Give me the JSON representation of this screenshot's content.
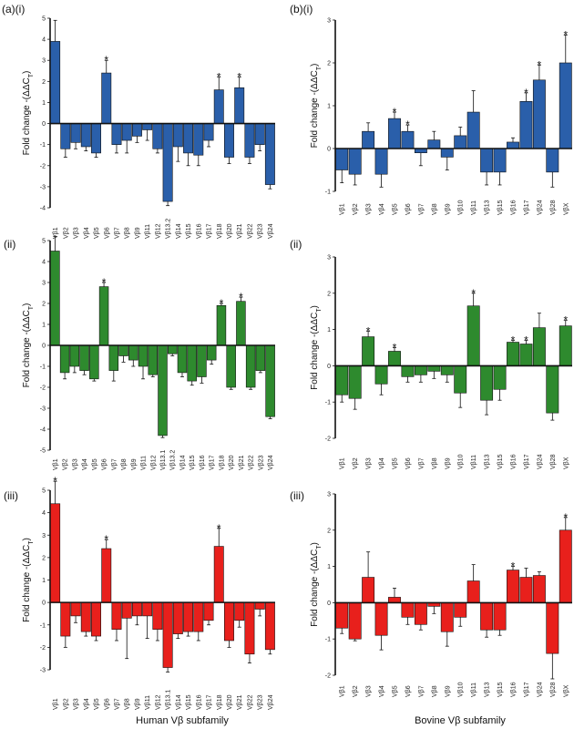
{
  "ylabel": "Fold change -(ΔΔC",
  "ylabel_sub": "T",
  "ylabel_end": ")",
  "xlabel_left": "Human Vβ subfamily",
  "xlabel_right": "Bovine Vβ subfamily",
  "colors": {
    "blue": "#2a5faa",
    "green": "#2e8a2e",
    "red": "#e8201c"
  },
  "chart_data": [
    {
      "type": "bar",
      "panel_label": "(a)(i)",
      "color": "blue",
      "ylim": [
        -4,
        5
      ],
      "categories": [
        "Vβ1",
        "Vβ2",
        "Vβ3",
        "Vβ4",
        "Vβ5",
        "Vβ6",
        "Vβ7",
        "Vβ8",
        "Vβ9",
        "Vβ11",
        "Vβ12",
        "Vβ13.2",
        "Vβ14",
        "Vβ15",
        "Vβ16",
        "Vβ17",
        "Vβ18",
        "Vβ20",
        "Vβ21",
        "Vβ22",
        "Vβ23",
        "Vβ24"
      ],
      "values": [
        3.9,
        -1.2,
        -0.9,
        -1.1,
        -1.4,
        2.4,
        -1.0,
        -0.8,
        -0.6,
        -0.3,
        -1.2,
        -3.7,
        -1.1,
        -1.4,
        -1.5,
        -0.8,
        1.6,
        -1.6,
        1.7,
        -1.6,
        -1.0,
        -2.9
      ],
      "errors": [
        1.0,
        0.4,
        0.3,
        0.2,
        0.2,
        0.6,
        0.4,
        0.6,
        0.3,
        0.5,
        0.2,
        0.2,
        0.7,
        0.6,
        0.5,
        0.3,
        0.6,
        0.3,
        0.5,
        0.3,
        0.3,
        0.2
      ],
      "significant": [
        false,
        false,
        false,
        false,
        false,
        true,
        false,
        false,
        false,
        false,
        false,
        false,
        false,
        false,
        false,
        false,
        true,
        false,
        true,
        false,
        false,
        false
      ]
    },
    {
      "type": "bar",
      "panel_label": "(b)(i)",
      "color": "blue",
      "ylim": [
        -1,
        3
      ],
      "categories": [
        "Vβ1",
        "Vβ2",
        "Vβ3",
        "Vβ4",
        "Vβ5",
        "Vβ6",
        "Vβ7",
        "Vβ8",
        "Vβ9",
        "Vβ10",
        "Vβ11",
        "Vβ13",
        "Vβ15",
        "Vβ16",
        "Vβ17",
        "Vβ24",
        "Vβ28",
        "VβX"
      ],
      "values": [
        -0.5,
        -0.6,
        0.4,
        -0.6,
        0.7,
        0.4,
        -0.1,
        0.2,
        -0.2,
        0.3,
        0.85,
        -0.55,
        -0.55,
        0.15,
        1.1,
        1.6,
        -0.55,
        2.0
      ],
      "errors": [
        0.3,
        0.25,
        0.2,
        0.3,
        0.15,
        0.15,
        0.3,
        0.2,
        0.3,
        0.2,
        0.5,
        0.3,
        0.3,
        0.1,
        0.2,
        0.35,
        0.35,
        0.65
      ],
      "significant": [
        false,
        false,
        false,
        false,
        true,
        true,
        false,
        false,
        false,
        false,
        false,
        false,
        false,
        false,
        true,
        true,
        false,
        true
      ]
    },
    {
      "type": "bar",
      "panel_label": "(ii)",
      "color": "green",
      "ylim": [
        -5,
        5
      ],
      "categories": [
        "Vβ1",
        "Vβ2",
        "Vβ3",
        "Vβ4",
        "Vβ5",
        "Vβ6",
        "Vβ7",
        "Vβ8",
        "Vβ9",
        "Vβ11",
        "Vβ12",
        "Vβ13.1",
        "Vβ13.2",
        "Vβ14",
        "Vβ15",
        "Vβ16",
        "Vβ17",
        "Vβ18",
        "Vβ20",
        "Vβ21",
        "Vβ22",
        "Vβ23",
        "Vβ24"
      ],
      "values": [
        4.5,
        -1.3,
        -1.0,
        -1.2,
        -1.6,
        2.8,
        -1.2,
        -0.5,
        -0.7,
        -1.0,
        -1.4,
        -4.3,
        -0.4,
        -1.3,
        -1.7,
        -1.5,
        -0.7,
        1.9,
        -2.0,
        2.1,
        -2.0,
        -1.2,
        -3.4
      ],
      "errors": [
        0.7,
        0.3,
        0.3,
        0.2,
        0.1,
        0.2,
        0.5,
        0.3,
        0.3,
        0.6,
        0.1,
        0.1,
        0.1,
        0.2,
        0.2,
        0.3,
        0.2,
        0.1,
        0.1,
        0.2,
        0.1,
        0.1,
        0.1
      ],
      "significant": [
        false,
        false,
        false,
        false,
        false,
        true,
        false,
        false,
        false,
        false,
        false,
        false,
        false,
        false,
        false,
        false,
        false,
        true,
        false,
        true,
        false,
        false,
        false
      ]
    },
    {
      "type": "bar",
      "panel_label": "(ii)",
      "color": "green",
      "ylim": [
        -2,
        3
      ],
      "categories": [
        "Vβ1",
        "Vβ2",
        "Vβ3",
        "Vβ4",
        "Vβ5",
        "Vβ6",
        "Vβ7",
        "Vβ8",
        "Vβ9",
        "Vβ10",
        "Vβ11",
        "Vβ13",
        "Vβ15",
        "Vβ16",
        "Vβ17",
        "Vβ24",
        "Vβ28",
        "VβX"
      ],
      "values": [
        -0.8,
        -0.9,
        0.8,
        -0.5,
        0.4,
        -0.3,
        -0.25,
        -0.15,
        -0.25,
        -0.75,
        1.65,
        -0.95,
        -0.65,
        0.65,
        0.6,
        1.05,
        -1.3,
        1.1
      ],
      "errors": [
        0.2,
        0.3,
        0.15,
        0.3,
        0.1,
        0.15,
        0.2,
        0.2,
        0.2,
        0.4,
        0.35,
        0.4,
        0.3,
        0.05,
        0.1,
        0.4,
        0.2,
        0.15
      ],
      "significant": [
        false,
        false,
        true,
        false,
        true,
        false,
        false,
        false,
        false,
        false,
        true,
        false,
        false,
        true,
        true,
        false,
        false,
        true
      ]
    },
    {
      "type": "bar",
      "panel_label": "(iii)",
      "color": "red",
      "ylim": [
        -3,
        5
      ],
      "categories": [
        "Vβ1",
        "Vβ2",
        "Vβ3",
        "Vβ4",
        "Vβ5",
        "Vβ6",
        "Vβ7",
        "Vβ8",
        "Vβ9",
        "Vβ11",
        "Vβ12",
        "Vβ13.1",
        "Vβ14",
        "Vβ15",
        "Vβ16",
        "Vβ17",
        "Vβ18",
        "Vβ20",
        "Vβ21",
        "Vβ22",
        "Vβ23",
        "Vβ24"
      ],
      "values": [
        4.4,
        -1.5,
        -0.6,
        -1.3,
        -1.5,
        2.4,
        -1.2,
        -0.7,
        -0.6,
        -0.6,
        -1.2,
        -2.9,
        -1.4,
        -1.3,
        -1.3,
        -0.8,
        2.5,
        -1.7,
        -0.8,
        -2.3,
        -0.3,
        -2.1
      ],
      "errors": [
        1.0,
        0.5,
        0.3,
        0.2,
        0.2,
        0.4,
        0.5,
        1.8,
        0.4,
        1.0,
        0.5,
        0.2,
        0.2,
        0.2,
        0.4,
        0.2,
        0.8,
        0.3,
        0.3,
        0.4,
        0.3,
        0.2
      ],
      "significant": [
        true,
        false,
        false,
        false,
        false,
        true,
        false,
        false,
        false,
        false,
        false,
        false,
        false,
        false,
        false,
        false,
        true,
        false,
        false,
        false,
        false,
        false
      ]
    },
    {
      "type": "bar",
      "panel_label": "(iii)",
      "color": "red",
      "ylim": [
        -2,
        3
      ],
      "categories": [
        "Vβ1",
        "Vβ2",
        "Vβ3",
        "Vβ4",
        "Vβ5",
        "Vβ6",
        "Vβ7",
        "Vβ8",
        "Vβ9",
        "Vβ10",
        "Vβ11",
        "Vβ13",
        "Vβ15",
        "Vβ16",
        "Vβ17",
        "Vβ24",
        "Vβ28",
        "VβX"
      ],
      "values": [
        -0.7,
        -1.0,
        0.7,
        -0.9,
        0.15,
        -0.4,
        -0.6,
        -0.1,
        -0.8,
        -0.4,
        0.6,
        -0.75,
        -0.75,
        0.9,
        0.7,
        0.75,
        -1.4,
        2.0
      ],
      "errors": [
        0.15,
        0.05,
        0.7,
        0.4,
        0.25,
        0.2,
        0.15,
        0.2,
        0.4,
        0.25,
        0.45,
        0.2,
        0.15,
        0.1,
        0.25,
        0.1,
        0.7,
        0.35
      ],
      "significant": [
        false,
        false,
        false,
        false,
        false,
        false,
        false,
        false,
        false,
        false,
        false,
        false,
        false,
        true,
        false,
        false,
        false,
        true
      ]
    }
  ]
}
